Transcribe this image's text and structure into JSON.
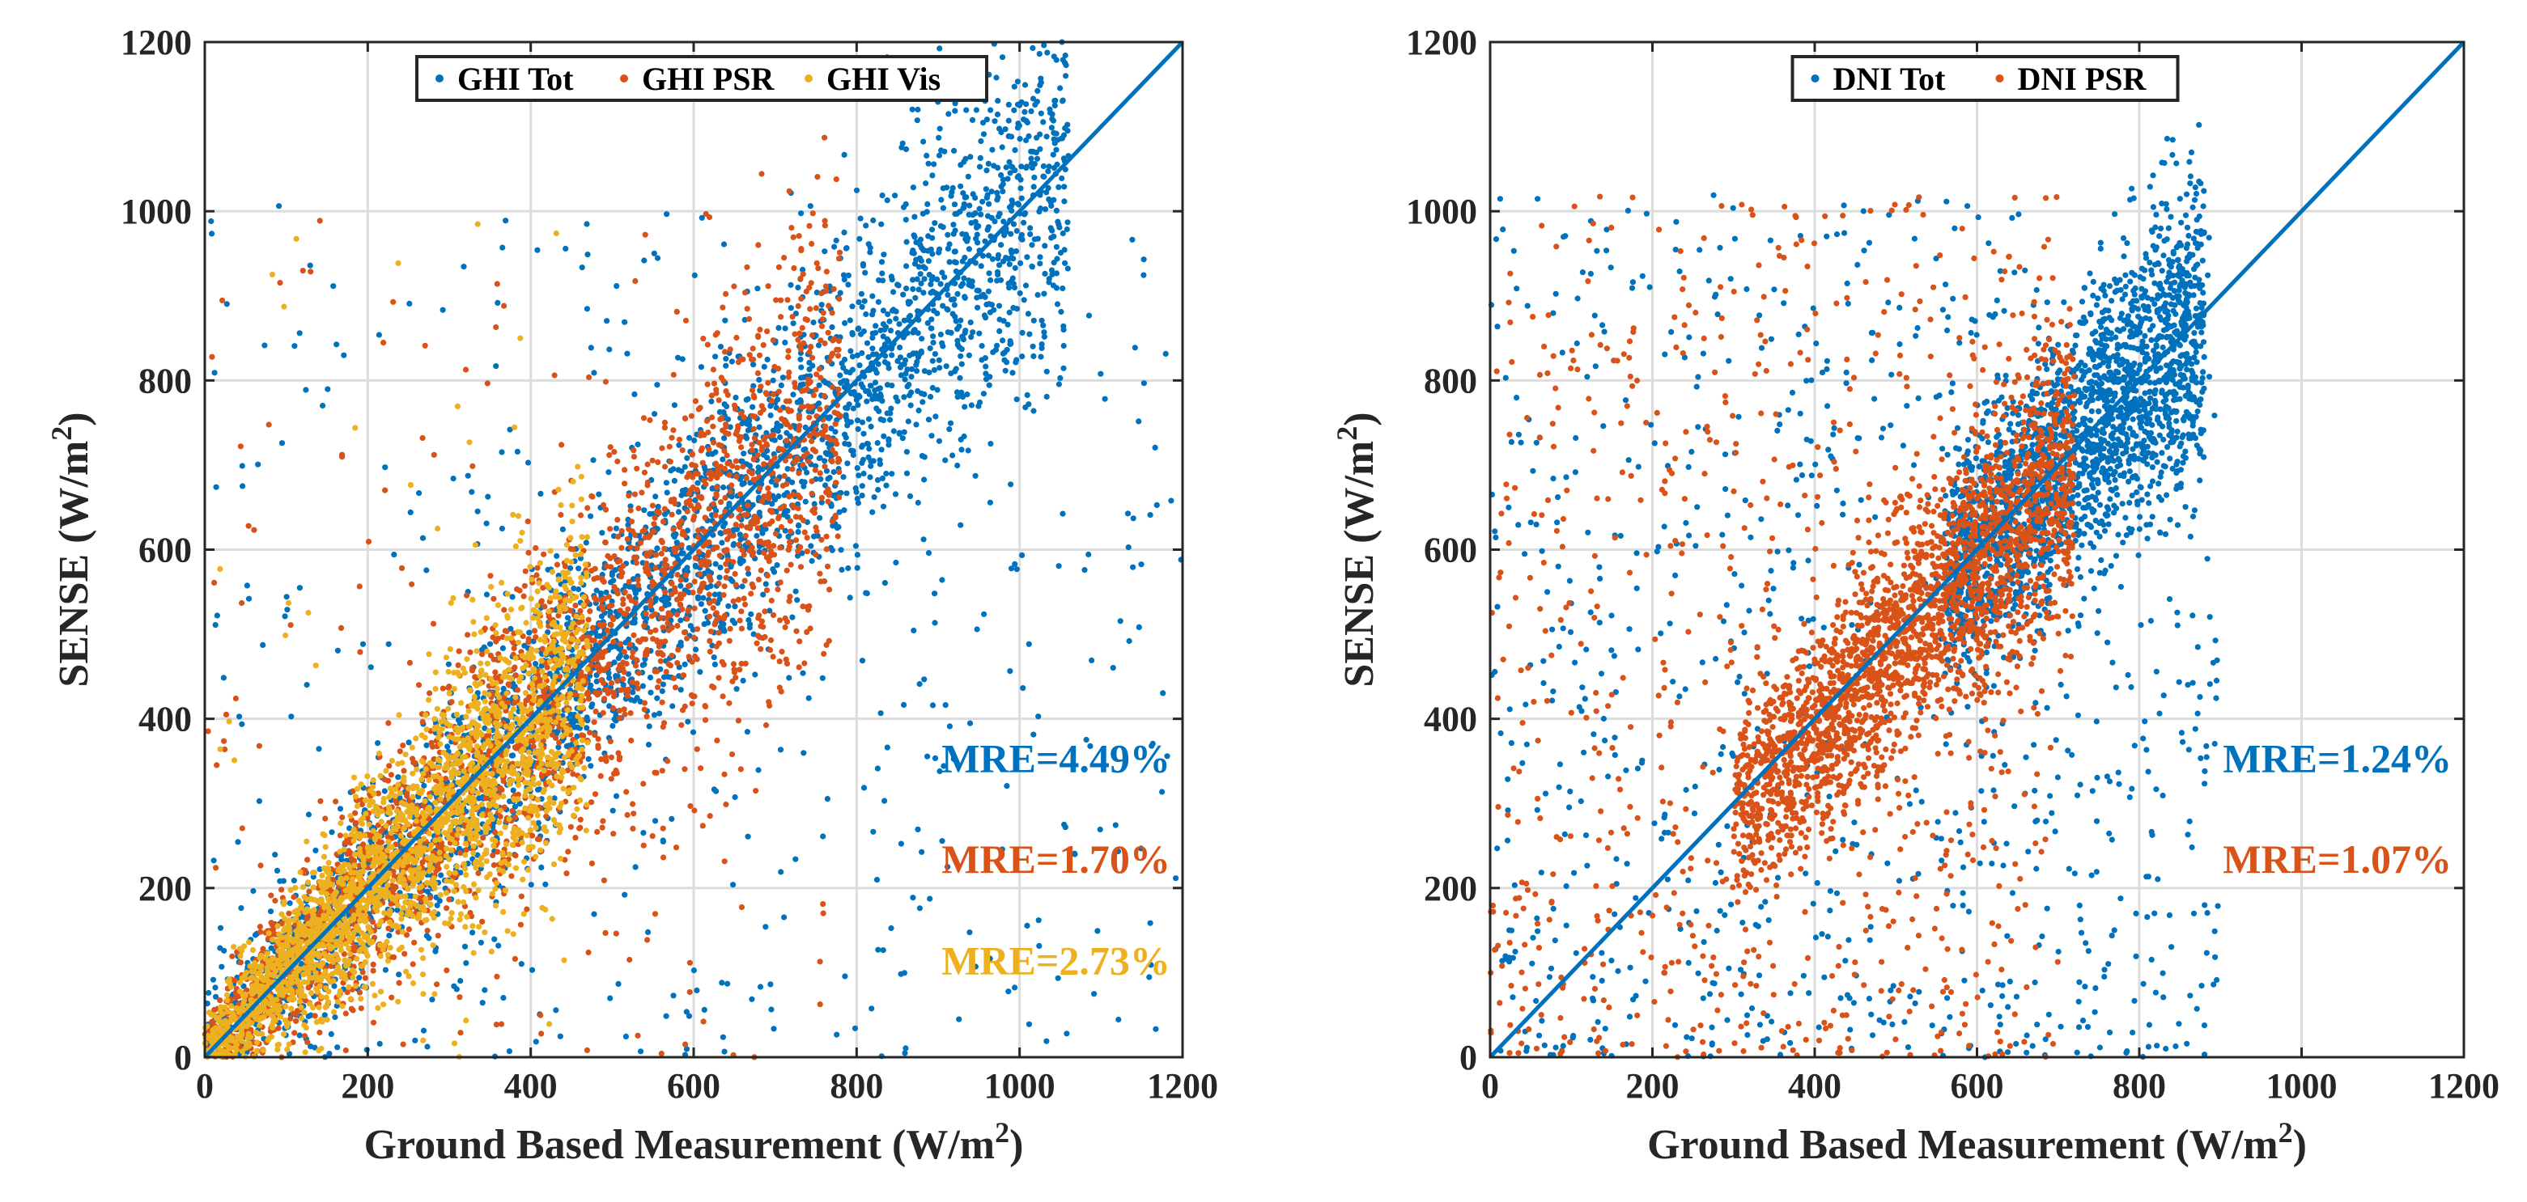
{
  "charts": [
    {
      "type": "scatter",
      "xlabel": "Ground Based Measurement (W/m",
      "xlabel_sup": "2",
      "xlabel_end": ")",
      "ylabel": "SENSE (W/m",
      "ylabel_sup": "2",
      "ylabel_end": ")",
      "xlim": [
        0,
        1200
      ],
      "ylim": [
        0,
        1200
      ],
      "xticks": [
        "0",
        "200",
        "400",
        "600",
        "800",
        "1000",
        "1200"
      ],
      "yticks": [
        "0",
        "200",
        "400",
        "600",
        "800",
        "1000",
        "1200"
      ],
      "grid": true,
      "legend_placement": "top-center",
      "reference_line": {
        "from": [
          0,
          0
        ],
        "to": [
          1200,
          1200
        ],
        "color": "#0072BD"
      },
      "series": [
        {
          "name": "GHI Tot",
          "color": "#0072BD",
          "count": 3500,
          "min": 0,
          "max": 1060,
          "slope": 1.0,
          "spread": 0.07,
          "floor": 40,
          "outlier_frac": 0.12,
          "outlier_min": 0,
          "outlier_max": 1200,
          "clip": [
            0,
            1200
          ]
        },
        {
          "name": "GHI PSR",
          "color": "#D95319",
          "count": 2500,
          "min": 0,
          "max": 780,
          "slope": 1.0,
          "spread": 0.14,
          "floor": 30,
          "outlier_frac": 0.06,
          "outlier_min": 0,
          "outlier_max": 760,
          "clip": [
            0,
            1200
          ]
        },
        {
          "name": "GHI Vis",
          "color": "#EDB120",
          "count": 2300,
          "min": 0,
          "max": 470,
          "slope": 1.0,
          "spread": 0.18,
          "floor": 22,
          "outlier_frac": 0.02,
          "outlier_min": 0,
          "outlier_max": 450,
          "clip": [
            0,
            1200
          ]
        }
      ],
      "annotations": [
        {
          "text": "MRE=4.49%",
          "color": "#0072BD",
          "x": 1185,
          "y": 337
        },
        {
          "text": "MRE=1.70%",
          "color": "#D95319",
          "x": 1185,
          "y": 218
        },
        {
          "text": "MRE=2.73%",
          "color": "#EDB120",
          "x": 1185,
          "y": 98
        }
      ]
    },
    {
      "type": "scatter",
      "xlabel": "Ground Based Measurement (W/m",
      "xlabel_sup": "2",
      "xlabel_end": ")",
      "ylabel": "SENSE (W/m",
      "ylabel_sup": "2",
      "ylabel_end": ")",
      "xlim": [
        0,
        1200
      ],
      "ylim": [
        0,
        1200
      ],
      "xticks": [
        "0",
        "200",
        "400",
        "600",
        "800",
        "1000",
        "1200"
      ],
      "yticks": [
        "0",
        "200",
        "400",
        "600",
        "800",
        "1000",
        "1200"
      ],
      "grid": true,
      "legend_placement": "top-center",
      "reference_line": {
        "from": [
          0,
          0
        ],
        "to": [
          1200,
          1200
        ],
        "color": "#0072BD"
      },
      "series": [
        {
          "name": "DNI Tot",
          "color": "#0072BD",
          "count": 3000,
          "min": 560,
          "max": 880,
          "slope": 1.0,
          "spread": 0.08,
          "floor": 20,
          "outlier_frac": 0.3,
          "outlier_min": 0,
          "outlier_max": 900,
          "clip": [
            0,
            1200
          ]
        },
        {
          "name": "DNI PSR",
          "color": "#D95319",
          "count": 3000,
          "min": 300,
          "max": 720,
          "slope": 0.98,
          "spread": 0.1,
          "floor": 20,
          "outlier_frac": 0.25,
          "outlier_min": 0,
          "outlier_max": 700,
          "clip": [
            0,
            1200
          ]
        }
      ],
      "annotations": [
        {
          "text": "MRE=1.24%",
          "color": "#0072BD",
          "x": 1185,
          "y": 337
        },
        {
          "text": "MRE=1.07%",
          "color": "#D95319",
          "x": 1185,
          "y": 218
        }
      ]
    }
  ]
}
